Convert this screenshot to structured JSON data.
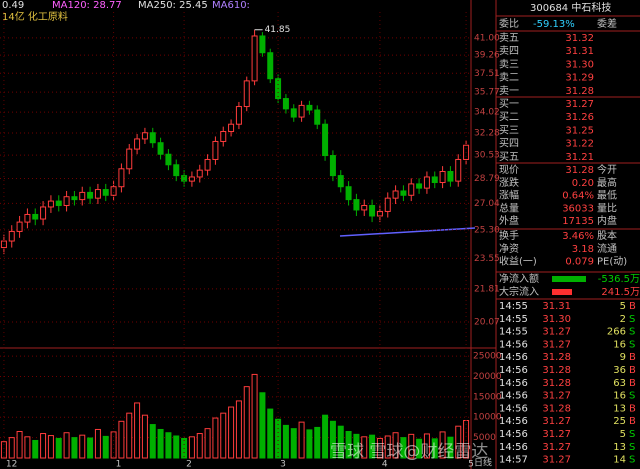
{
  "indicator_bar": {
    "last": "0.49",
    "ma120": "MA120: 28.77",
    "ma250": "MA250: 25.45",
    "ma610": "MA610:",
    "sector": "14亿 化工原料"
  },
  "chart_data": {
    "type": "candlestick",
    "categories": [
      "12",
      null,
      null,
      null,
      null,
      null,
      null,
      null,
      null,
      null,
      null,
      null,
      null,
      null,
      "1",
      null,
      null,
      null,
      null,
      null,
      null,
      null,
      null,
      "2",
      null,
      null,
      null,
      null,
      null,
      null,
      null,
      null,
      null,
      null,
      null,
      "3",
      null,
      null,
      null,
      null,
      null,
      null,
      null,
      null,
      null,
      null,
      null,
      null,
      "4",
      null,
      null,
      null,
      null,
      null,
      null,
      null,
      null,
      null,
      null,
      "5"
    ],
    "open": [
      24.2,
      24.6,
      25.2,
      25.8,
      26.3,
      26.0,
      26.8,
      27.2,
      26.9,
      27.5,
      27.3,
      27.8,
      27.4,
      28.0,
      27.6,
      28.2,
      29.5,
      31.0,
      31.8,
      32.3,
      31.5,
      30.6,
      29.8,
      29.0,
      28.6,
      28.9,
      29.4,
      30.2,
      31.6,
      32.4,
      33.0,
      34.5,
      36.8,
      41.2,
      39.5,
      37.0,
      35.2,
      34.3,
      33.6,
      34.6,
      34.2,
      33.0,
      30.5,
      29.0,
      28.2,
      27.3,
      26.6,
      26.9,
      26.2,
      26.5,
      27.4,
      27.9,
      27.6,
      28.4,
      28.1,
      28.9,
      28.5,
      29.3,
      28.6,
      30.2
    ],
    "high": [
      25.0,
      25.6,
      26.2,
      26.7,
      26.7,
      27.2,
      27.6,
      27.6,
      27.9,
      27.9,
      28.2,
      28.2,
      28.4,
      28.4,
      28.6,
      29.9,
      31.4,
      32.2,
      32.7,
      32.7,
      31.9,
      31.0,
      30.2,
      29.4,
      29.3,
      29.8,
      30.6,
      32.0,
      32.8,
      33.4,
      34.9,
      37.2,
      41.85,
      41.6,
      39.9,
      37.4,
      35.6,
      34.7,
      35.0,
      35.0,
      34.6,
      33.4,
      30.9,
      29.4,
      28.6,
      27.7,
      27.3,
      27.3,
      26.9,
      27.8,
      28.3,
      28.3,
      28.8,
      28.8,
      29.3,
      29.3,
      29.7,
      29.7,
      30.6,
      31.7
    ],
    "low": [
      23.8,
      24.2,
      24.8,
      25.4,
      25.6,
      25.6,
      26.4,
      26.5,
      26.5,
      26.9,
      26.9,
      27.0,
      27.0,
      27.2,
      27.2,
      27.8,
      29.1,
      30.6,
      31.4,
      31.1,
      30.2,
      29.4,
      28.6,
      28.2,
      28.2,
      28.5,
      29.0,
      29.8,
      31.2,
      32.0,
      32.6,
      34.1,
      36.4,
      39.1,
      36.6,
      34.8,
      33.9,
      33.2,
      33.2,
      33.8,
      32.6,
      30.1,
      28.6,
      27.8,
      26.9,
      26.2,
      26.2,
      25.8,
      25.8,
      26.1,
      27.0,
      27.2,
      27.2,
      27.7,
      27.7,
      28.1,
      28.1,
      28.2,
      28.2,
      29.8
    ],
    "close": [
      24.6,
      25.2,
      25.8,
      26.3,
      26.0,
      26.8,
      27.2,
      26.9,
      27.5,
      27.3,
      27.8,
      27.4,
      28.0,
      27.6,
      28.2,
      29.5,
      31.0,
      31.8,
      32.3,
      31.5,
      30.6,
      29.8,
      29.0,
      28.6,
      28.9,
      29.4,
      30.2,
      31.6,
      32.4,
      33.0,
      34.5,
      36.8,
      41.2,
      39.5,
      37.0,
      35.2,
      34.3,
      33.6,
      34.6,
      34.2,
      33.0,
      30.5,
      29.0,
      28.2,
      27.3,
      26.6,
      26.9,
      26.2,
      26.5,
      27.4,
      27.9,
      27.6,
      28.4,
      28.1,
      28.9,
      28.5,
      29.3,
      28.6,
      30.2,
      31.3
    ],
    "volume": [
      4000,
      5000,
      6500,
      5200,
      4300,
      6000,
      5500,
      4800,
      6200,
      5000,
      5600,
      4900,
      7000,
      5300,
      6400,
      9000,
      11000,
      13500,
      10500,
      8200,
      7000,
      6200,
      5400,
      4800,
      5200,
      6000,
      7200,
      9800,
      11000,
      12500,
      14000,
      17500,
      20500,
      16000,
      12000,
      9500,
      8000,
      7200,
      8800,
      6900,
      7500,
      10500,
      9000,
      7800,
      6500,
      5800,
      5200,
      5600,
      4800,
      5400,
      6200,
      5000,
      5800,
      4600,
      5900,
      4700,
      6400,
      5100,
      7800,
      9200
    ],
    "log_scale": true,
    "ylim": [
      18.94,
      43.76
    ],
    "yticks": [
      {
        "value": 41.0,
        "label": "41.00"
      },
      {
        "value": 39.26,
        "label": "39.26"
      },
      {
        "value": 37.51,
        "label": "37.51"
      },
      {
        "value": 35.77,
        "label": "35.77"
      },
      {
        "value": 34.02,
        "label": "34.02"
      },
      {
        "value": 32.28,
        "label": "32.28"
      },
      {
        "value": 30.53,
        "label": "30.53"
      },
      {
        "value": 28.79,
        "label": "28.79"
      },
      {
        "value": 27.04,
        "label": "27.04"
      },
      {
        "value": 25.3,
        "label": "25.30"
      },
      {
        "value": 23.55,
        "label": "23.55"
      },
      {
        "value": 21.81,
        "label": "21.81"
      },
      {
        "value": 20.07,
        "label": "20.07"
      }
    ],
    "volume_ylim": [
      0,
      26000
    ],
    "volume_yticks": [
      5000,
      10000,
      15000,
      20000,
      25000
    ],
    "volume_axis_label": "日线",
    "up_color": "#ff3c3c",
    "down_color": "#00b000",
    "grid": true
  },
  "panel": {
    "header": "300684 中石科技",
    "ratio": [
      "委比",
      "-59.13%",
      "委差"
    ],
    "asks": [
      [
        "卖五",
        "31.32"
      ],
      [
        "卖四",
        "31.31"
      ],
      [
        "卖三",
        "31.30"
      ],
      [
        "卖二",
        "31.29"
      ],
      [
        "卖一",
        "31.28"
      ]
    ],
    "bids": [
      [
        "买一",
        "31.27"
      ],
      [
        "买二",
        "31.26"
      ],
      [
        "买三",
        "31.25"
      ],
      [
        "买四",
        "31.22"
      ],
      [
        "买五",
        "31.21"
      ]
    ],
    "stats": [
      [
        "现价",
        "31.28",
        "今开"
      ],
      [
        "涨跌",
        "0.20",
        "最高"
      ],
      [
        "涨幅",
        "0.64%",
        "最低"
      ],
      [
        "总量",
        "36033",
        "量比"
      ],
      [
        "外盘",
        "17135",
        "内盘"
      ]
    ],
    "stats2": [
      [
        "换手",
        "3.46%",
        "股本"
      ],
      [
        "净资",
        "3.18",
        "流通"
      ],
      [
        "收益(一)",
        "0.079",
        "PE(动)"
      ]
    ],
    "flows": [
      [
        "净流入额",
        "-536.5万"
      ],
      [
        "大宗流入",
        "241.5万"
      ]
    ],
    "trades": [
      [
        "14:55",
        "31.31",
        "5",
        "B"
      ],
      [
        "14:55",
        "31.30",
        "2",
        "S"
      ],
      [
        "14:55",
        "31.27",
        "266",
        "S"
      ],
      [
        "14:56",
        "31.27",
        "16",
        "S"
      ],
      [
        "14:56",
        "31.28",
        "9",
        "B"
      ],
      [
        "14:56",
        "31.28",
        "36",
        "B"
      ],
      [
        "14:56",
        "31.28",
        "63",
        "B"
      ],
      [
        "14:56",
        "31.27",
        "16",
        "S"
      ],
      [
        "14:56",
        "31.28",
        "13",
        "B"
      ],
      [
        "14:56",
        "31.27",
        "25",
        "B"
      ],
      [
        "14:56",
        "31.27",
        "5",
        "S"
      ],
      [
        "14:56",
        "31.27",
        "13",
        "S"
      ],
      [
        "14:57",
        "31.27",
        "14",
        "S"
      ]
    ]
  },
  "watermark": "雪球 雪球@财经雷达"
}
